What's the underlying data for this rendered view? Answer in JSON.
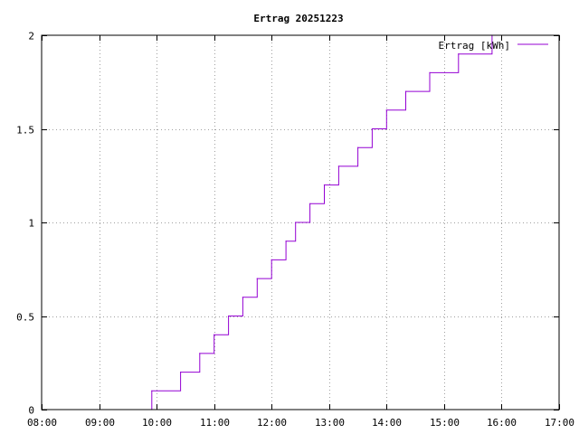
{
  "chart_data": {
    "type": "line",
    "step": true,
    "title": "Ertrag 20251223",
    "xlabel": "",
    "ylabel": "",
    "xlim": [
      "08:00",
      "17:00"
    ],
    "ylim": [
      0,
      2
    ],
    "x_ticks": [
      "08:00",
      "09:00",
      "10:00",
      "11:00",
      "12:00",
      "13:00",
      "14:00",
      "15:00",
      "16:00",
      "17:00"
    ],
    "y_ticks": [
      "0",
      "0.5",
      "1",
      "1.5",
      "2"
    ],
    "y_tick_values": [
      0,
      0.5,
      1,
      1.5,
      2
    ],
    "grid": true,
    "legend_position": "top-right",
    "series": [
      {
        "name": "Ertrag [kWh]",
        "color": "#9400d3",
        "points": [
          {
            "x": "09:55",
            "y": 0
          },
          {
            "x": "09:55",
            "y": 0.1
          },
          {
            "x": "10:25",
            "y": 0.2
          },
          {
            "x": "10:45",
            "y": 0.3
          },
          {
            "x": "11:00",
            "y": 0.4
          },
          {
            "x": "11:15",
            "y": 0.5
          },
          {
            "x": "11:30",
            "y": 0.6
          },
          {
            "x": "11:45",
            "y": 0.7
          },
          {
            "x": "12:00",
            "y": 0.8
          },
          {
            "x": "12:15",
            "y": 0.9
          },
          {
            "x": "12:25",
            "y": 1.0
          },
          {
            "x": "12:40",
            "y": 1.1
          },
          {
            "x": "12:55",
            "y": 1.2
          },
          {
            "x": "13:10",
            "y": 1.3
          },
          {
            "x": "13:30",
            "y": 1.4
          },
          {
            "x": "13:45",
            "y": 1.5
          },
          {
            "x": "14:00",
            "y": 1.6
          },
          {
            "x": "14:20",
            "y": 1.7
          },
          {
            "x": "14:45",
            "y": 1.8
          },
          {
            "x": "15:15",
            "y": 1.9
          },
          {
            "x": "15:50",
            "y": 2.0
          }
        ]
      }
    ]
  }
}
